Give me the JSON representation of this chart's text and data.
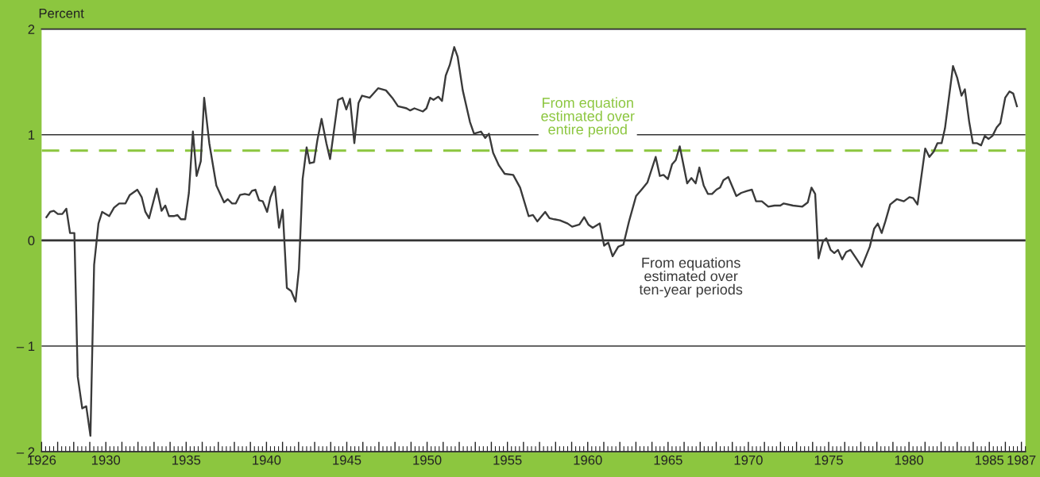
{
  "chart_data": {
    "type": "line",
    "ylabel": "Percent",
    "xlim": [
      1926,
      1987.25
    ],
    "ylim": [
      -2,
      2
    ],
    "yticks": [
      2,
      1,
      0,
      {
        "value": -1,
        "label": "– 1"
      },
      {
        "value": -2,
        "label": "– 2"
      }
    ],
    "xticks": [
      1926,
      {
        "value": 1927,
        "label": null
      },
      {
        "value": 1928,
        "label": null
      },
      {
        "value": 1929,
        "label": null
      },
      1930,
      {
        "value": 1931,
        "label": null
      },
      {
        "value": 1932,
        "label": null
      },
      {
        "value": 1933,
        "label": null
      },
      {
        "value": 1934,
        "label": null
      },
      1935,
      {
        "value": 1936,
        "label": null
      },
      {
        "value": 1937,
        "label": null
      },
      {
        "value": 1938,
        "label": null
      },
      {
        "value": 1939,
        "label": null
      },
      1940,
      {
        "value": 1941,
        "label": null
      },
      {
        "value": 1942,
        "label": null
      },
      {
        "value": 1943,
        "label": null
      },
      {
        "value": 1944,
        "label": null
      },
      1945,
      {
        "value": 1946,
        "label": null
      },
      {
        "value": 1947,
        "label": null
      },
      {
        "value": 1948,
        "label": null
      },
      {
        "value": 1949,
        "label": null
      },
      1950,
      {
        "value": 1951,
        "label": null
      },
      {
        "value": 1952,
        "label": null
      },
      {
        "value": 1953,
        "label": null
      },
      {
        "value": 1954,
        "label": null
      },
      1955,
      {
        "value": 1956,
        "label": null
      },
      {
        "value": 1957,
        "label": null
      },
      {
        "value": 1958,
        "label": null
      },
      {
        "value": 1959,
        "label": null
      },
      1960,
      {
        "value": 1961,
        "label": null
      },
      {
        "value": 1962,
        "label": null
      },
      {
        "value": 1963,
        "label": null
      },
      {
        "value": 1964,
        "label": null
      },
      1965,
      {
        "value": 1966,
        "label": null
      },
      {
        "value": 1967,
        "label": null
      },
      {
        "value": 1968,
        "label": null
      },
      {
        "value": 1969,
        "label": null
      },
      1970,
      {
        "value": 1971,
        "label": null
      },
      {
        "value": 1972,
        "label": null
      },
      {
        "value": 1973,
        "label": null
      },
      {
        "value": 1974,
        "label": null
      },
      1975,
      {
        "value": 1976,
        "label": null
      },
      {
        "value": 1977,
        "label": null
      },
      {
        "value": 1978,
        "label": null
      },
      {
        "value": 1979,
        "label": null
      },
      1980,
      {
        "value": 1981,
        "label": null
      },
      {
        "value": 1982,
        "label": null
      },
      {
        "value": 1983,
        "label": null
      },
      {
        "value": 1984,
        "label": null
      },
      1985,
      {
        "value": 1986,
        "label": null
      },
      1987
    ],
    "grid": "y",
    "legend": false,
    "marker": "none",
    "line_style": "solid",
    "ref_lines": [
      {
        "axis": "y",
        "value": 0,
        "label": null,
        "color": "#333333",
        "line_style": "solid"
      },
      {
        "axis": "y",
        "value": 0.85,
        "label": "From equation\nestimated over\nentire period",
        "color": "#8cc63f",
        "line_style": "dashed"
      }
    ],
    "series": [
      {
        "name": "From equations\nestimated over\nten-year periods",
        "color": "#3a3a3a",
        "x": [
          1926.3,
          1926.53,
          1926.76,
          1927.01,
          1927.29,
          1927.54,
          1927.77,
          1928.04,
          1928.25,
          1928.53,
          1928.78,
          1929.04,
          1929.27,
          1929.54,
          1929.77,
          1930.21,
          1930.51,
          1930.83,
          1931.22,
          1931.49,
          1931.96,
          1932.23,
          1932.46,
          1932.69,
          1933.17,
          1933.47,
          1933.7,
          1933.93,
          1934.23,
          1934.46,
          1934.67,
          1934.94,
          1935.17,
          1935.42,
          1935.65,
          1935.91,
          1936.12,
          1936.44,
          1936.88,
          1937.36,
          1937.59,
          1937.86,
          1938.09,
          1938.35,
          1938.65,
          1938.92,
          1939.1,
          1939.31,
          1939.54,
          1939.77,
          1940.04,
          1940.25,
          1940.52,
          1940.78,
          1941.01,
          1941.27,
          1941.54,
          1941.81,
          1942.02,
          1942.25,
          1942.5,
          1942.69,
          1942.96,
          1943.17,
          1943.43,
          1943.73,
          1943.96,
          1944.46,
          1944.73,
          1944.97,
          1945.2,
          1945.47,
          1945.73,
          1945.95,
          1946.42,
          1946.95,
          1947.44,
          1947.83,
          1948.19,
          1948.72,
          1948.95,
          1949.21,
          1949.74,
          1949.96,
          1950.19,
          1950.4,
          1950.7,
          1950.93,
          1951.16,
          1951.41,
          1951.69,
          1951.9,
          1952.22,
          1952.67,
          1952.92,
          1953.35,
          1953.62,
          1953.85,
          1954.11,
          1954.47,
          1954.83,
          1955.36,
          1955.79,
          1956.32,
          1956.59,
          1956.86,
          1957.35,
          1957.62,
          1957.92,
          1958.27,
          1958.75,
          1959.03,
          1959.48,
          1959.78,
          1960.04,
          1960.31,
          1960.75,
          1961.02,
          1961.28,
          1961.55,
          1961.9,
          1962.22,
          1962.57,
          1963.01,
          1963.4,
          1963.72,
          1964.23,
          1964.49,
          1964.72,
          1964.99,
          1965.25,
          1965.48,
          1965.73,
          1966.19,
          1966.45,
          1966.72,
          1966.95,
          1967.22,
          1967.48,
          1967.74,
          1968.01,
          1968.24,
          1968.45,
          1968.75,
          1969.25,
          1969.56,
          1969.95,
          1970.22,
          1970.48,
          1970.84,
          1971.24,
          1971.63,
          1971.99,
          1972.2,
          1972.78,
          1973.36,
          1973.7,
          1973.93,
          1974.16,
          1974.37,
          1974.64,
          1974.85,
          1975.12,
          1975.35,
          1975.58,
          1975.84,
          1976.09,
          1976.36,
          1976.8,
          1977.06,
          1977.56,
          1977.83,
          1978.06,
          1978.3,
          1978.53,
          1978.83,
          1979.24,
          1979.68,
          1980.03,
          1980.26,
          1980.53,
          1981.01,
          1981.27,
          1981.54,
          1981.77,
          1982.03,
          1982.24,
          1982.74,
          1983.0,
          1983.27,
          1983.48,
          1983.75,
          1983.98,
          1984.24,
          1984.49,
          1984.72,
          1984.95,
          1985.2,
          1985.46,
          1985.69,
          1985.99,
          1986.26,
          1986.49,
          1986.72
        ],
        "values": [
          0.22,
          0.27,
          0.28,
          0.25,
          0.25,
          0.3,
          0.07,
          0.07,
          -1.29,
          -1.59,
          -1.57,
          -1.85,
          -0.23,
          0.16,
          0.27,
          0.23,
          0.31,
          0.35,
          0.35,
          0.43,
          0.48,
          0.41,
          0.27,
          0.21,
          0.49,
          0.28,
          0.33,
          0.23,
          0.23,
          0.24,
          0.2,
          0.2,
          0.45,
          1.03,
          0.61,
          0.75,
          1.35,
          0.92,
          0.52,
          0.36,
          0.39,
          0.35,
          0.35,
          0.43,
          0.44,
          0.43,
          0.47,
          0.48,
          0.38,
          0.37,
          0.27,
          0.41,
          0.51,
          0.12,
          0.29,
          -0.45,
          -0.48,
          -0.58,
          -0.27,
          0.58,
          0.88,
          0.73,
          0.74,
          0.95,
          1.15,
          0.92,
          0.77,
          1.33,
          1.35,
          1.24,
          1.34,
          0.92,
          1.3,
          1.37,
          1.35,
          1.44,
          1.42,
          1.35,
          1.27,
          1.25,
          1.23,
          1.25,
          1.22,
          1.25,
          1.35,
          1.33,
          1.36,
          1.32,
          1.56,
          1.66,
          1.83,
          1.74,
          1.42,
          1.12,
          1.01,
          1.03,
          0.97,
          1.01,
          0.83,
          0.71,
          0.63,
          0.62,
          0.5,
          0.23,
          0.24,
          0.18,
          0.27,
          0.21,
          0.2,
          0.19,
          0.16,
          0.13,
          0.15,
          0.22,
          0.15,
          0.12,
          0.16,
          -0.05,
          -0.02,
          -0.15,
          -0.06,
          -0.04,
          0.18,
          0.42,
          0.49,
          0.55,
          0.79,
          0.61,
          0.62,
          0.58,
          0.72,
          0.76,
          0.89,
          0.54,
          0.59,
          0.54,
          0.69,
          0.52,
          0.44,
          0.44,
          0.48,
          0.5,
          0.57,
          0.6,
          0.42,
          0.45,
          0.47,
          0.48,
          0.37,
          0.37,
          0.32,
          0.33,
          0.33,
          0.35,
          0.33,
          0.32,
          0.36,
          0.5,
          0.44,
          -0.17,
          -0.01,
          0.02,
          -0.09,
          -0.12,
          -0.09,
          -0.18,
          -0.11,
          -0.09,
          -0.19,
          -0.25,
          -0.06,
          0.11,
          0.16,
          0.07,
          0.18,
          0.34,
          0.39,
          0.37,
          0.41,
          0.4,
          0.34,
          0.87,
          0.79,
          0.84,
          0.92,
          0.92,
          1.06,
          1.65,
          1.54,
          1.37,
          1.43,
          1.12,
          0.92,
          0.92,
          0.9,
          0.99,
          0.96,
          0.99,
          1.07,
          1.11,
          1.35,
          1.41,
          1.39,
          1.27
        ]
      }
    ]
  }
}
